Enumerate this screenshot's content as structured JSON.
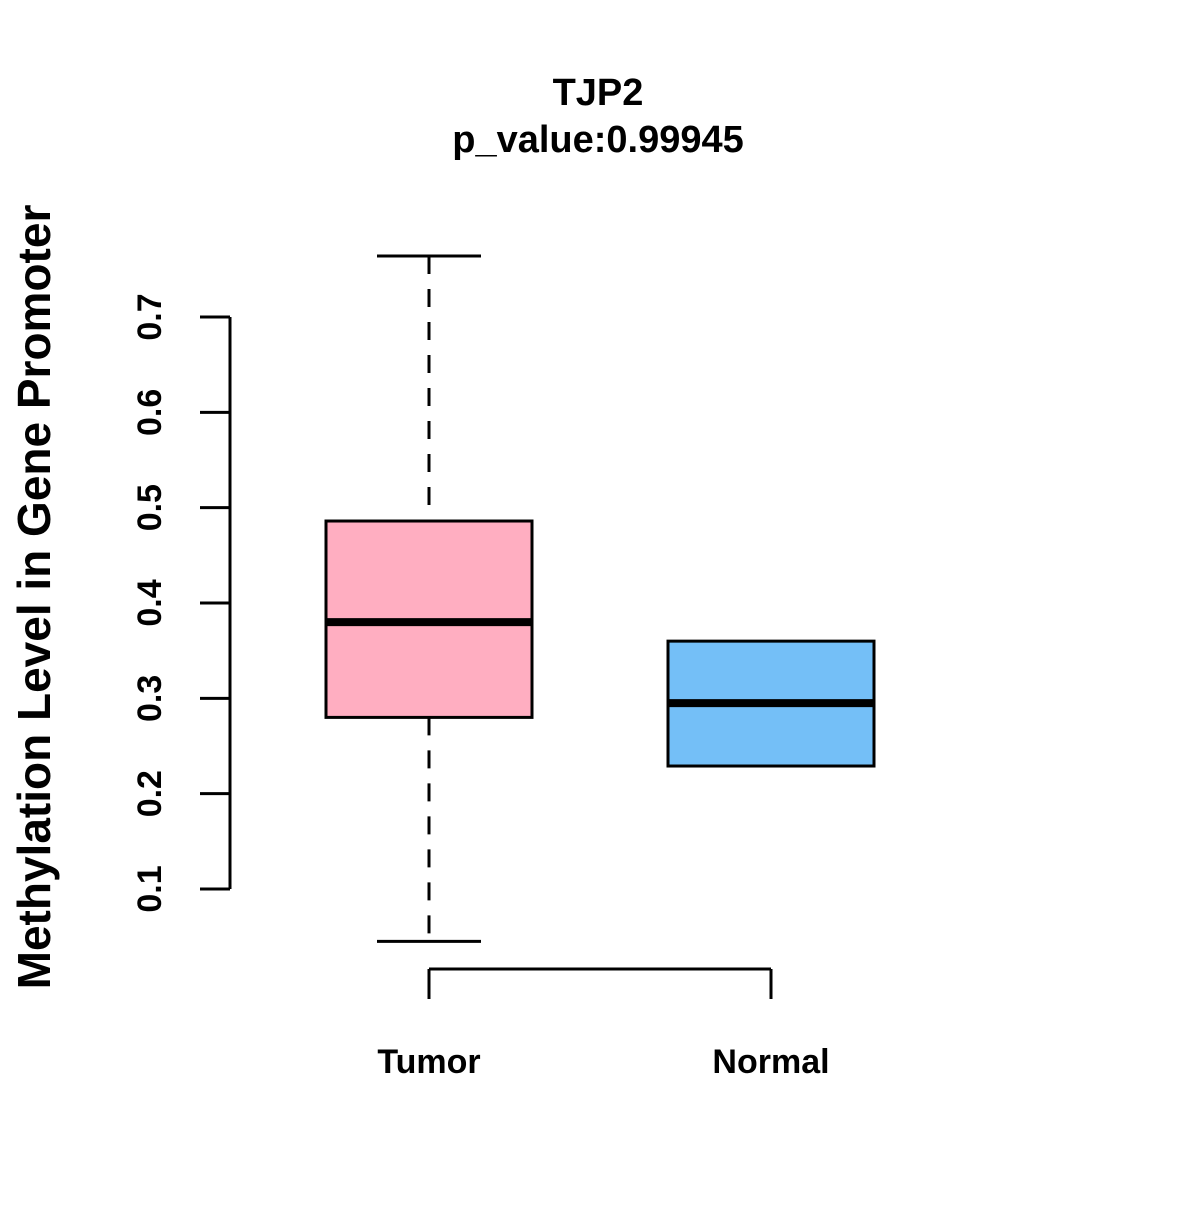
{
  "figure": {
    "background_color": "#ffffff",
    "foreground_color": "#000000"
  },
  "chart_data": {
    "type": "boxplot",
    "title": "TJP2",
    "subtitle": "p_value:0.99945",
    "ylabel": "Methylation Level in Gene Promoter",
    "xlabel": "",
    "ylim": [
      0.04,
      0.77
    ],
    "y_ticks": [
      0.1,
      0.2,
      0.3,
      0.4,
      0.5,
      0.6,
      0.7
    ],
    "grid": false,
    "legend": "none",
    "categories": [
      "Tumor",
      "Normal"
    ],
    "groups": [
      {
        "label": "Tumor",
        "fill_color": "#FFAEC1",
        "border_color": "#000000",
        "whisker_low": 0.045,
        "q1": 0.28,
        "median": 0.38,
        "q3": 0.486,
        "whisker_high": 0.764,
        "whisker_line_style": "dashed"
      },
      {
        "label": "Normal",
        "fill_color": "#74BFF7",
        "border_color": "#000000",
        "whisker_low": 0.229,
        "q1": 0.229,
        "median": 0.295,
        "q3": 0.36,
        "whisker_high": 0.36,
        "whisker_line_style": "dashed"
      }
    ]
  }
}
